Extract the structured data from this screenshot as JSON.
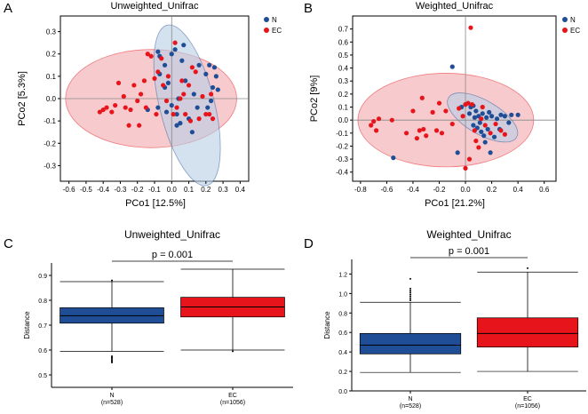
{
  "colors": {
    "n": "#1f4e96",
    "ec": "#e8141c",
    "n_ellipse": "#b8cfe6",
    "ec_ellipse": "#f2a8ab",
    "axis": "#000000"
  },
  "panel_letters": [
    "A",
    "B",
    "C",
    "D"
  ],
  "chart_data": [
    {
      "type": "scatter",
      "panel": "A",
      "title": "Unweighted_Unifrac",
      "xlabel": "PCo1 [12.5%]",
      "ylabel": "PCo2 [5.3%]",
      "xlim": [
        -0.65,
        0.45
      ],
      "ylim": [
        -0.37,
        0.37
      ],
      "xticks": [
        -0.6,
        -0.5,
        -0.4,
        -0.3,
        -0.2,
        -0.1,
        0.0,
        0.1,
        0.2,
        0.3,
        0.4
      ],
      "yticks": [
        -0.3,
        -0.2,
        -0.1,
        0.0,
        0.1,
        0.2,
        0.3
      ],
      "xtick_labels": [
        "-0.6",
        "-0.5",
        "-0.4",
        "-0.3",
        "-0.2",
        "-0.1",
        "0.0",
        "0.1",
        "0.2",
        "0.3",
        "0.4"
      ],
      "ytick_labels": [
        "-0.3",
        "-0.2",
        "-0.1",
        "0.0",
        "0.1",
        "0.2",
        "0.3"
      ],
      "legend": [
        {
          "label": "N",
          "group": "n"
        },
        {
          "label": "EC",
          "group": "ec"
        }
      ],
      "ellipses": [
        {
          "group": "ec",
          "cx": -0.12,
          "cy": 0.0,
          "rx": 0.5,
          "ry": 0.22,
          "angle": 0
        },
        {
          "group": "n",
          "cx": 0.09,
          "cy": -0.03,
          "rx": 0.16,
          "ry": 0.37,
          "angle": 14
        }
      ],
      "series": [
        {
          "name": "N",
          "group": "n",
          "points": [
            [
              -0.08,
              0.21
            ],
            [
              -0.07,
              0.19
            ],
            [
              -0.07,
              0.11
            ],
            [
              -0.08,
              -0.04
            ],
            [
              -0.04,
              0.15
            ],
            [
              -0.02,
              0.07
            ],
            [
              0.0,
              0.2
            ],
            [
              0.02,
              0.22
            ],
            [
              0.03,
              -0.12
            ],
            [
              0.03,
              -0.07
            ],
            [
              0.04,
              0.0
            ],
            [
              0.06,
              0.17
            ],
            [
              0.07,
              0.24
            ],
            [
              0.1,
              -0.09
            ],
            [
              0.08,
              0.08
            ],
            [
              0.13,
              0.02
            ],
            [
              0.15,
              -0.04
            ],
            [
              0.16,
              0.15
            ],
            [
              0.2,
              0.11
            ],
            [
              0.21,
              -0.04
            ],
            [
              0.22,
              0.15
            ],
            [
              0.23,
              -0.01
            ],
            [
              0.24,
              0.05
            ],
            [
              0.25,
              0.14
            ],
            [
              0.26,
              0.1
            ],
            [
              0.27,
              0.04
            ],
            [
              -0.03,
              -0.06
            ],
            [
              0.05,
              -0.11
            ],
            [
              0.12,
              -0.15
            ],
            [
              -0.14,
              -0.05
            ],
            [
              -0.04,
              0.05
            ],
            [
              0.0,
              -0.03
            ]
          ]
        },
        {
          "name": "EC",
          "group": "ec",
          "points": [
            [
              -0.42,
              -0.06
            ],
            [
              -0.4,
              -0.05
            ],
            [
              -0.38,
              -0.04
            ],
            [
              -0.35,
              -0.06
            ],
            [
              -0.33,
              -0.03
            ],
            [
              -0.31,
              0.07
            ],
            [
              -0.28,
              0.01
            ],
            [
              -0.27,
              -0.04
            ],
            [
              -0.25,
              -0.12
            ],
            [
              -0.24,
              -0.05
            ],
            [
              -0.22,
              0.06
            ],
            [
              -0.2,
              -0.01
            ],
            [
              -0.19,
              -0.12
            ],
            [
              -0.18,
              0.02
            ],
            [
              -0.15,
              -0.04
            ],
            [
              -0.14,
              0.2
            ],
            [
              -0.12,
              0.19
            ],
            [
              -0.1,
              0.09
            ],
            [
              -0.09,
              -0.07
            ],
            [
              -0.08,
              0.12
            ],
            [
              -0.06,
              0.18
            ],
            [
              -0.05,
              0.06
            ],
            [
              -0.03,
              -0.01
            ],
            [
              -0.02,
              0.1
            ],
            [
              0.01,
              -0.07
            ],
            [
              0.02,
              0.25
            ],
            [
              0.03,
              -0.04
            ],
            [
              0.06,
              0.08
            ],
            [
              0.07,
              0.02
            ],
            [
              0.08,
              -0.07
            ],
            [
              0.1,
              0.06
            ],
            [
              0.11,
              -0.1
            ],
            [
              0.12,
              0.14
            ],
            [
              0.14,
              0.12
            ],
            [
              0.16,
              -0.09
            ],
            [
              0.18,
              0.01
            ],
            [
              0.2,
              -0.07
            ],
            [
              0.22,
              -0.07
            ],
            [
              0.23,
              0.02
            ],
            [
              0.24,
              -0.09
            ],
            [
              0.05,
              0.0
            ],
            [
              -0.16,
              0.08
            ]
          ]
        }
      ]
    },
    {
      "type": "scatter",
      "panel": "B",
      "title": "Weighted_Unifrac",
      "xlabel": "PCo1 [21.2%]",
      "ylabel": "PCo2 [9%]",
      "xlim": [
        -0.86,
        0.69
      ],
      "ylim": [
        -0.47,
        0.8
      ],
      "xticks": [
        -0.8,
        -0.6,
        -0.4,
        -0.2,
        0.0,
        0.2,
        0.4,
        0.6
      ],
      "yticks": [
        -0.4,
        -0.3,
        -0.2,
        -0.1,
        0.0,
        0.1,
        0.2,
        0.3,
        0.4,
        0.5,
        0.6,
        0.7
      ],
      "xtick_labels": [
        "-0.8",
        "-0.6",
        "-0.4",
        "-0.2",
        "0.0",
        "0.2",
        "0.4",
        "0.6"
      ],
      "ytick_labels": [
        "-0.4",
        "-0.3",
        "-0.2",
        "-0.1",
        "0.0",
        "0.1",
        "0.2",
        "0.3",
        "0.4",
        "0.5",
        "0.6",
        "0.7"
      ],
      "legend": [
        {
          "label": "N",
          "group": "n"
        },
        {
          "label": "EC",
          "group": "ec"
        }
      ],
      "ellipses": [
        {
          "group": "ec",
          "cx": -0.15,
          "cy": 0.0,
          "rx": 0.67,
          "ry": 0.36,
          "angle": 0
        },
        {
          "group": "n",
          "cx": 0.13,
          "cy": 0.02,
          "rx": 0.3,
          "ry": 0.13,
          "angle": -30
        }
      ],
      "series": [
        {
          "name": "N",
          "group": "n",
          "points": [
            [
              -0.1,
              0.41
            ],
            [
              -0.55,
              -0.29
            ],
            [
              -0.06,
              -0.25
            ],
            [
              0.0,
              0.12
            ],
            [
              0.03,
              0.05
            ],
            [
              0.04,
              0.1
            ],
            [
              0.06,
              0.11
            ],
            [
              0.06,
              -0.04
            ],
            [
              0.07,
              0.02
            ],
            [
              0.08,
              0.07
            ],
            [
              0.1,
              0.03
            ],
            [
              0.11,
              -0.02
            ],
            [
              0.12,
              -0.09
            ],
            [
              0.13,
              0.05
            ],
            [
              0.14,
              -0.12
            ],
            [
              0.16,
              0.02
            ],
            [
              0.17,
              -0.07
            ],
            [
              0.18,
              0.06
            ],
            [
              0.2,
              0.03
            ],
            [
              0.22,
              -0.13
            ],
            [
              0.24,
              0.01
            ],
            [
              0.27,
              0.04
            ],
            [
              0.3,
              0.03
            ],
            [
              0.33,
              -0.02
            ],
            [
              0.35,
              0.04
            ],
            [
              0.4,
              0.04
            ],
            [
              0.19,
              -0.25
            ],
            [
              0.26,
              -0.07
            ],
            [
              0.09,
              -0.06
            ],
            [
              0.15,
              -0.17
            ],
            [
              -0.03,
              0.1
            ]
          ]
        },
        {
          "name": "EC",
          "group": "ec",
          "points": [
            [
              -0.72,
              -0.04
            ],
            [
              -0.7,
              -0.01
            ],
            [
              -0.68,
              -0.08
            ],
            [
              -0.66,
              0.01
            ],
            [
              -0.56,
              0.0
            ],
            [
              -0.45,
              -0.1
            ],
            [
              -0.4,
              0.07
            ],
            [
              -0.37,
              -0.14
            ],
            [
              -0.35,
              -0.08
            ],
            [
              -0.33,
              0.17
            ],
            [
              -0.32,
              -0.07
            ],
            [
              -0.3,
              -0.12
            ],
            [
              -0.25,
              0.06
            ],
            [
              -0.22,
              -0.08
            ],
            [
              -0.2,
              0.13
            ],
            [
              -0.18,
              -0.1
            ],
            [
              -0.15,
              0.07
            ],
            [
              -0.1,
              -0.03
            ],
            [
              -0.05,
              0.09
            ],
            [
              -0.02,
              0.03
            ],
            [
              0.0,
              0.12
            ],
            [
              0.02,
              0.13
            ],
            [
              0.04,
              0.71
            ],
            [
              0.05,
              0.12
            ],
            [
              0.07,
              -0.08
            ],
            [
              0.08,
              -0.16
            ],
            [
              0.1,
              -0.21
            ],
            [
              0.12,
              0.01
            ],
            [
              0.15,
              -0.04
            ],
            [
              0.19,
              -0.1
            ],
            [
              0.23,
              -0.03
            ],
            [
              0.27,
              -0.08
            ],
            [
              0.3,
              -0.11
            ],
            [
              0.03,
              -0.3
            ],
            [
              0.0,
              -0.37
            ],
            [
              0.13,
              0.1
            ]
          ]
        }
      ]
    },
    {
      "type": "box",
      "panel": "C",
      "title": "Unweighted_Unifrac",
      "ylabel": "Distance",
      "ylim": [
        0.45,
        0.95
      ],
      "yticks": [
        0.5,
        0.6,
        0.7,
        0.8,
        0.9
      ],
      "ytick_labels": [
        "0.5",
        "0.6",
        "0.7",
        "0.8",
        "0.9"
      ],
      "significance": "p = 0.001",
      "boxes": [
        {
          "name": "N",
          "label": "N",
          "n_label": "(n=528)",
          "group": "n",
          "min": 0.595,
          "q1": 0.708,
          "median": 0.738,
          "q3": 0.77,
          "max": 0.875,
          "outliers": [
            0.575,
            0.57,
            0.565,
            0.56,
            0.555,
            0.55,
            0.88
          ]
        },
        {
          "name": "EC",
          "label": "EC",
          "n_label": "(n=1056)",
          "group": "ec",
          "min": 0.6,
          "q1": 0.733,
          "median": 0.773,
          "q3": 0.812,
          "max": 0.925,
          "outliers": [
            0.595
          ]
        }
      ]
    },
    {
      "type": "box",
      "panel": "D",
      "title": "Weighted_Unifrac",
      "ylabel": "Distance",
      "ylim": [
        0.0,
        1.35
      ],
      "yticks": [
        0.0,
        0.2,
        0.4,
        0.6,
        0.8,
        1.0,
        1.2
      ],
      "ytick_labels": [
        "0.0",
        "0.2",
        "0.4",
        "0.6",
        "0.8",
        "1.0",
        "1.2"
      ],
      "significance": "p = 0.001",
      "boxes": [
        {
          "name": "N",
          "label": "N",
          "n_label": "(n=528)",
          "group": "n",
          "min": 0.19,
          "q1": 0.38,
          "median": 0.47,
          "q3": 0.59,
          "max": 0.91,
          "outliers": [
            0.93,
            0.95,
            0.97,
            0.99,
            1.01,
            1.03,
            1.05,
            1.15
          ]
        },
        {
          "name": "EC",
          "label": "EC",
          "n_label": "(n=1056)",
          "group": "ec",
          "min": 0.2,
          "q1": 0.45,
          "median": 0.59,
          "q3": 0.75,
          "max": 1.22,
          "outliers": [
            1.26
          ]
        }
      ]
    }
  ]
}
